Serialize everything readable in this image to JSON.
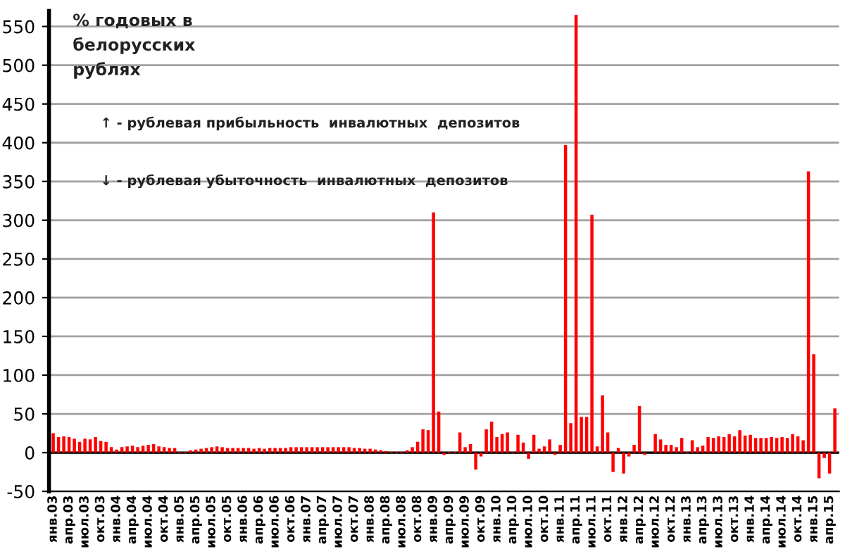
{
  "chart_data": {
    "type": "bar",
    "categories": [
      "янв.03",
      null,
      null,
      "апр.03",
      null,
      null,
      "июл.03",
      null,
      null,
      "окт.03",
      null,
      null,
      "янв.04",
      null,
      null,
      "апр.04",
      null,
      null,
      "июл.04",
      null,
      null,
      "окт.04",
      null,
      null,
      "янв.05",
      null,
      null,
      "апр.05",
      null,
      null,
      "июл.05",
      null,
      null,
      "окт.05",
      null,
      null,
      "янв.06",
      null,
      null,
      "апр.06",
      null,
      null,
      "июл.06",
      null,
      null,
      "окт.06",
      null,
      null,
      "янв.07",
      null,
      null,
      "апр.07",
      null,
      null,
      "июл.07",
      null,
      null,
      "окт.07",
      null,
      null,
      "янв.08",
      null,
      null,
      "апр.08",
      null,
      null,
      "июл.08",
      null,
      null,
      "окт.08",
      null,
      null,
      "янв.09",
      null,
      null,
      "апр.09",
      null,
      null,
      "июл.09",
      null,
      null,
      "окт.09",
      null,
      null,
      "янв.10",
      null,
      null,
      "апр.10",
      null,
      null,
      "июл.10",
      null,
      null,
      "окт.10",
      null,
      null,
      "янв.11",
      null,
      null,
      "апр.11",
      null,
      null,
      "июл.11",
      null,
      null,
      "окт.11",
      null,
      null,
      "янв.12",
      null,
      null,
      "апр.12",
      null,
      null,
      "июл.12",
      null,
      null,
      "окт.12",
      null,
      null,
      "янв.13",
      null,
      null,
      "апр.13",
      null,
      null,
      "июл.13",
      null,
      null,
      "окт.13",
      null,
      null,
      "янв.14",
      null,
      null,
      "апр.14",
      null,
      null,
      "июл.14",
      null,
      null,
      "окт.14",
      null,
      null,
      "янв.15",
      null,
      null,
      "апр.15",
      null
    ],
    "values": [
      25,
      20,
      21,
      20,
      18,
      14,
      18,
      17,
      20,
      15,
      14,
      7,
      4,
      7,
      8,
      9,
      7,
      9,
      10,
      11,
      8,
      7,
      6,
      6,
      1,
      1,
      3,
      4,
      5,
      6,
      7,
      8,
      7,
      6,
      6,
      6,
      6,
      6,
      5,
      6,
      5,
      6,
      6,
      6,
      6,
      7,
      7,
      7,
      7,
      7,
      7,
      7,
      7,
      7,
      7,
      7,
      7,
      6,
      6,
      5,
      5,
      4,
      3,
      2,
      1,
      1,
      1,
      3,
      7,
      14,
      30,
      29,
      310,
      53,
      -3,
      1,
      1,
      26,
      7,
      11,
      -22,
      -5,
      30,
      40,
      20,
      24,
      26,
      1,
      23,
      13,
      -8,
      23,
      5,
      8,
      17,
      -3,
      10,
      397,
      38,
      565,
      46,
      46,
      307,
      8,
      74,
      26,
      -25,
      6,
      -27,
      -5,
      10,
      60,
      -3,
      0,
      24,
      17,
      10,
      10,
      7,
      19,
      1,
      16,
      7,
      9,
      20,
      19,
      21,
      20,
      24,
      21,
      29,
      22,
      23,
      19,
      19,
      19,
      20,
      19,
      20,
      19,
      24,
      21,
      16,
      363,
      127,
      -33,
      -7,
      -27,
      57
    ],
    "color": "#ff0000",
    "ylim": [
      -50,
      570
    ],
    "yticks": [
      -50,
      0,
      50,
      100,
      150,
      200,
      250,
      300,
      350,
      400,
      450,
      500,
      550
    ],
    "grid": "y",
    "ref_lines": [
      {
        "axis": "y",
        "value": 0,
        "color": "#000000"
      }
    ],
    "annotations": [
      "% годовых в\nбелорусских\nрублях",
      "↑ - рублевая прибыльность  инвалютных  депозитов",
      "↓ - рублевая убыточность  инвалютных  депозитов"
    ]
  }
}
